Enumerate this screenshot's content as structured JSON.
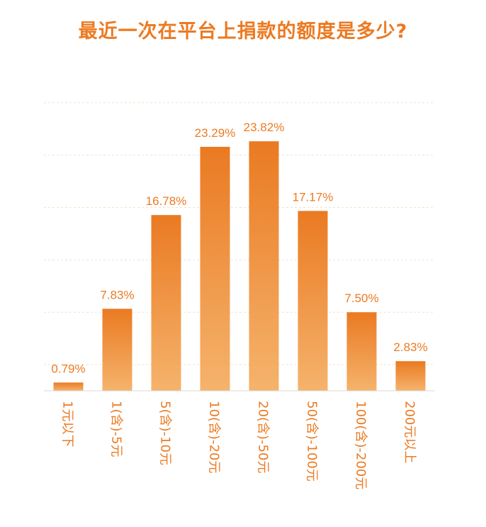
{
  "chart_data": {
    "type": "bar",
    "title": "最近一次在平台上捐款的额度是多少?",
    "categories": [
      "1元以下",
      "1(含)-5元",
      "5(含)-10元",
      "10(含)-20元",
      "20(含)-50元",
      "50(含)-100元",
      "100(含)-200元",
      "200元以上"
    ],
    "values": [
      0.79,
      7.83,
      16.78,
      23.29,
      23.82,
      17.17,
      7.5,
      2.83
    ],
    "value_labels": [
      "0.79%",
      "7.83%",
      "16.78%",
      "23.29%",
      "23.82%",
      "17.17%",
      "7.50%",
      "2.83%"
    ],
    "ylim": [
      0,
      25
    ],
    "grid": true,
    "bar_color_top": "#ea7a22",
    "bar_color_bottom": "#f5b36c",
    "text_color": "#ec7a22"
  }
}
